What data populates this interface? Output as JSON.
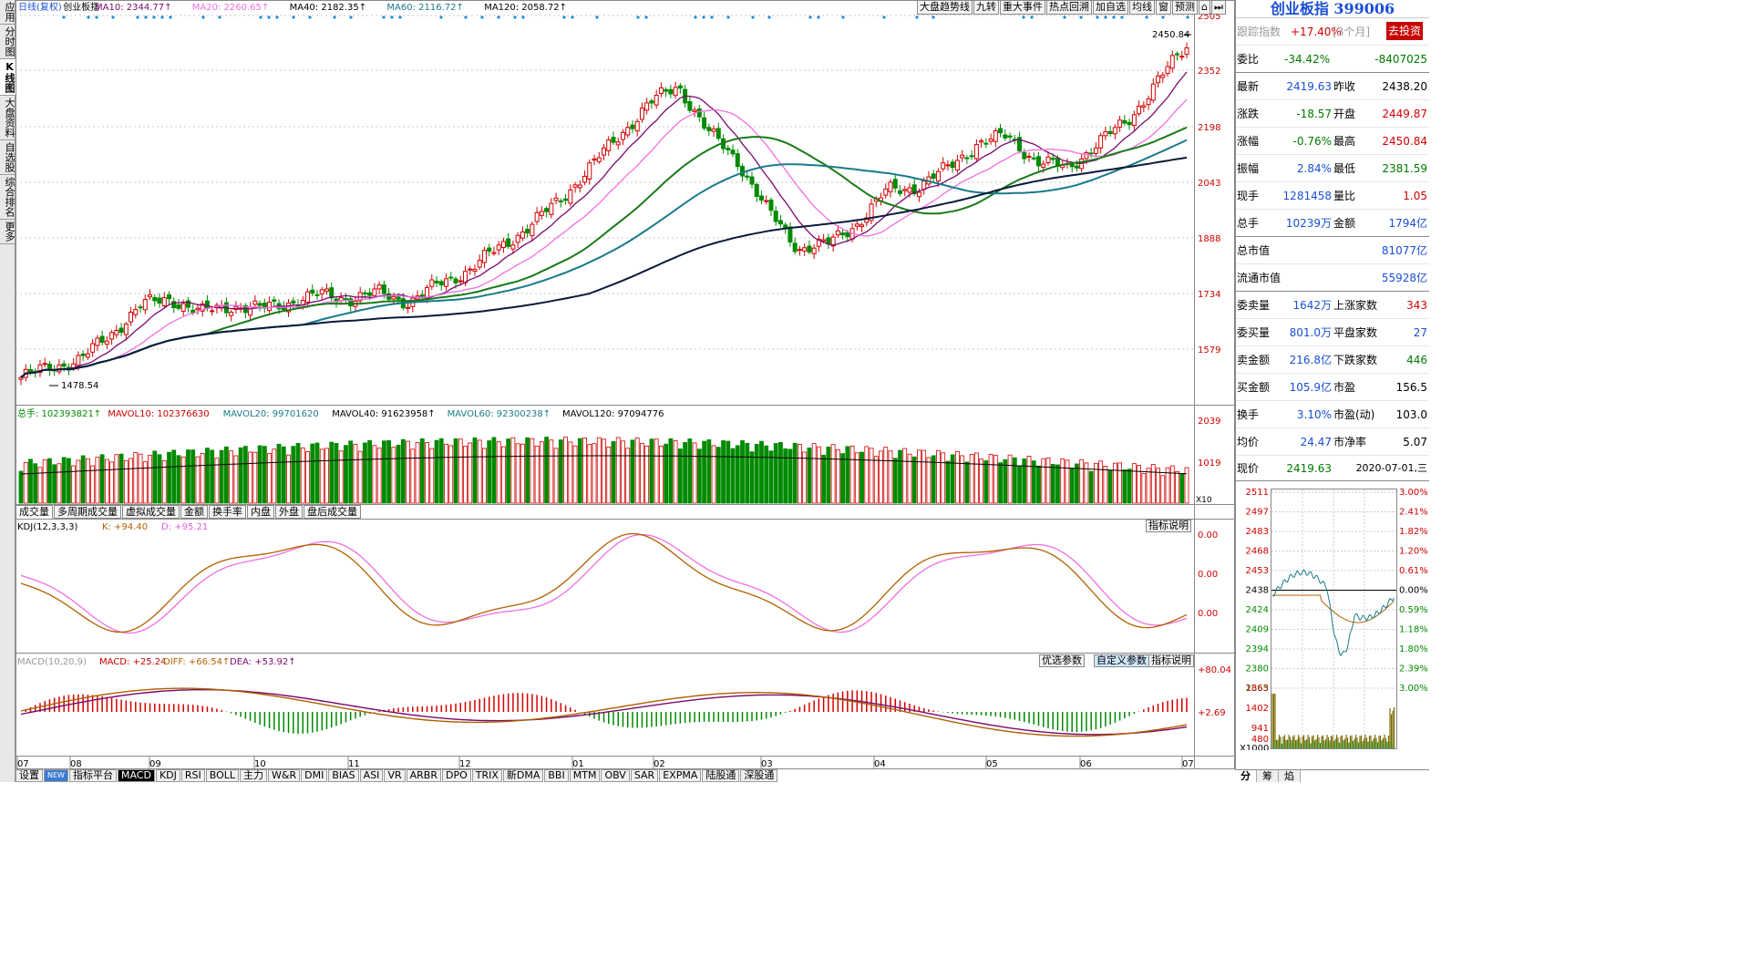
{
  "sidebar": {
    "tabs": [
      {
        "label": "应用",
        "active": false
      },
      {
        "label": "分时图",
        "active": false
      },
      {
        "label": "K线图",
        "active": true
      },
      {
        "label": "大盘资料",
        "active": false
      },
      {
        "label": "自选股",
        "active": false
      },
      {
        "label": "综合排名",
        "active": false
      },
      {
        "label": "更多",
        "active": false
      }
    ]
  },
  "chart_header": {
    "period": "日线(复权)",
    "name": "创业板指",
    "ma10": "MA10: 2344.77↑",
    "ma20": "MA20: 2260.65↑",
    "ma40": "MA40: 2182.35↑",
    "ma60": "MA60: 2116.72↑",
    "ma120": "MA120: 2058.72↑"
  },
  "top_buttons": [
    "大盘趋势线",
    "九转",
    "重大事件",
    "热点回溯",
    "加自选",
    "均线",
    "窗",
    "预测",
    "⌂",
    "⏭"
  ],
  "annotations": {
    "high": "2450.84",
    "low": "1478.54"
  },
  "volume_header": {
    "total": "总手: 102393821↑",
    "mavol10": "MAVOL10: 102376630",
    "mavol20": "MAVOL20: 99701620",
    "mavol40": "MAVOL40: 91623958↑",
    "mavol60": "MAVOL60: 92300238↑",
    "mavol120": "MAVOL120: 97094776"
  },
  "volume_tabs": [
    "成交量",
    "多周期成交量",
    "虚拟成交量",
    "金额",
    "换手率",
    "内盘",
    "外盘",
    "盘后成交量"
  ],
  "volume_unit": "X10",
  "kdj_header": {
    "name": "KDJ(12,3,3,3)",
    "k": "K: +94.40",
    "d": "D: +95.21"
  },
  "indicator_btn": "指标说明",
  "macd_header": {
    "name": "MACD(10,20,9)",
    "macd": "MACD: +25.24",
    "diff": "DIFF: +66.54↑",
    "dea": "DEA: +53.92↑"
  },
  "macd_btns": [
    "优选参数",
    "自定义参数",
    "指标说明"
  ],
  "bottom_tabs": [
    "设置",
    "NEW",
    "指标平台",
    "MACD",
    "KDJ",
    "RSI",
    "BOLL",
    "主力",
    "W&R",
    "DMI",
    "BIAS",
    "ASI",
    "VR",
    "ARBR",
    "DPO",
    "TRIX",
    "新DMA",
    "BBI",
    "MTM",
    "OBV",
    "SAR",
    "EXPMA",
    "陆股通",
    "深股通"
  ],
  "chart_data": {
    "type": "candlestick",
    "price_axis": [
      "2505",
      "2352",
      "2198",
      "2043",
      "1888",
      "1734",
      "1579"
    ],
    "volume_axis": [
      "2039",
      "1019"
    ],
    "kdj_axis": [
      "0.00",
      "0.00",
      "0.00"
    ],
    "macd_axis": [
      "+80.04",
      "+2.69"
    ],
    "x_labels": [
      "07",
      "08",
      "09",
      "10",
      "11",
      "12",
      "01",
      "02",
      "03",
      "04",
      "05",
      "06",
      "07"
    ],
    "close_path": [
      1500,
      1530,
      1550,
      1620,
      1700,
      1720,
      1680,
      1700,
      1690,
      1710,
      1730,
      1720,
      1735,
      1710,
      1760,
      1800,
      1860,
      1920,
      1990,
      2080,
      2170,
      2260,
      2310,
      2180,
      2100,
      1960,
      1860,
      1870,
      1930,
      2020,
      2030,
      2080,
      2150,
      2170,
      2100,
      2080,
      2150,
      2210,
      2320,
      2419.63
    ]
  },
  "quote": {
    "title": "创业板指 399006",
    "gotrade": "去投资",
    "rows": [
      {
        "l1": "跟踪指数",
        "v1": "+17.40%",
        "l2": "[3个月]",
        "v2": ""
      },
      {
        "l1": "委比",
        "v1": "-34.42%",
        "l2": "",
        "v2": "-8407025"
      },
      {
        "l1": "最新",
        "v1": "2419.63",
        "l2": "昨收",
        "v2": "2438.20"
      },
      {
        "l1": "涨跌",
        "v1": "-18.57",
        "l2": "开盘",
        "v2": "2449.87"
      },
      {
        "l1": "涨幅",
        "v1": "-0.76%",
        "l2": "最高",
        "v2": "2450.84"
      },
      {
        "l1": "振幅",
        "v1": "2.84%",
        "l2": "最低",
        "v2": "2381.59"
      },
      {
        "l1": "现手",
        "v1": "1281458",
        "l2": "量比",
        "v2": "1.05"
      },
      {
        "l1": "总手",
        "v1": "10239万",
        "l2": "金额",
        "v2": "1794亿"
      },
      {
        "l1": "总市值",
        "v1": "",
        "l2": "",
        "v2": "81077亿"
      },
      {
        "l1": "流通市值",
        "v1": "",
        "l2": "",
        "v2": "55928亿"
      },
      {
        "l1": "委卖量",
        "v1": "1642万",
        "l2": "上涨家数",
        "v2": "343"
      },
      {
        "l1": "委买量",
        "v1": "801.0万",
        "l2": "平盘家数",
        "v2": "27"
      },
      {
        "l1": "卖金额",
        "v1": "216.8亿",
        "l2": "下跌家数",
        "v2": "446"
      },
      {
        "l1": "买金额",
        "v1": "105.9亿",
        "l2": "市盈",
        "v2": "156.5"
      },
      {
        "l1": "换手",
        "v1": "3.10%",
        "l2": "市盈(动)",
        "v2": "103.0"
      },
      {
        "l1": "均价",
        "v1": "24.47",
        "l2": "市净率",
        "v2": "5.07"
      }
    ],
    "price_label": "现价",
    "price_value": "2419.63",
    "date": "2020-07-01,三"
  },
  "intraday": {
    "left_axis": [
      "2511",
      "2497",
      "2483",
      "2468",
      "2453",
      "2438",
      "2424",
      "2409",
      "2394",
      "2380",
      "2365"
    ],
    "right_axis": [
      "3.00%",
      "2.41%",
      "1.82%",
      "1.20%",
      "0.61%",
      "0.00%",
      "0.59%",
      "1.18%",
      "1.80%",
      "2.39%",
      "3.00%"
    ],
    "vol_axis": [
      "1863",
      "1402",
      "941",
      "480",
      "X1000"
    ],
    "tabs": [
      "分",
      "筹",
      "焰"
    ]
  },
  "colors": {
    "up": "#d10000",
    "down": "#008a00",
    "ma10": "#7a0a6e",
    "ma20": "#f070e0",
    "ma40": "#1a7a1a",
    "ma60": "#1a7a8a",
    "ma120": "#0a1a3a"
  }
}
